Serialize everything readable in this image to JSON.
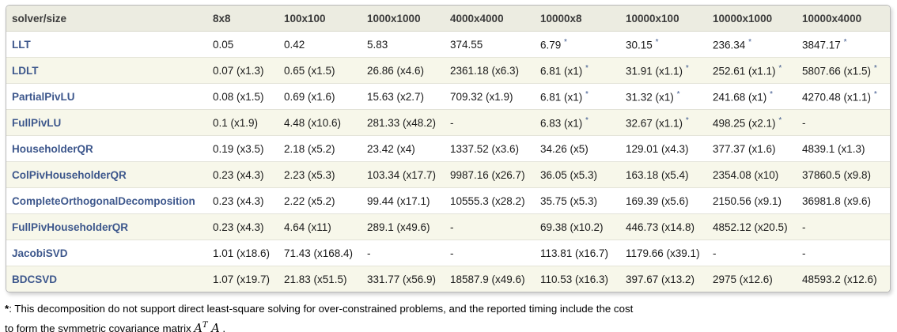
{
  "colors": {
    "header_bg": "#ECECE1",
    "row_bg": "#FFFFFF",
    "row_alt_bg": "#F7F7EA",
    "link": "#3D578C",
    "border": "#B8B8B8",
    "row_divider": "#E3E3D8",
    "header_text": "#3B3B3B",
    "cell_text": "#1A1A1A"
  },
  "table": {
    "star_marker": "*",
    "columns": [
      "solver/size",
      "8x8",
      "100x100",
      "1000x1000",
      "4000x4000",
      "10000x8",
      "10000x100",
      "10000x1000",
      "10000x4000"
    ],
    "rows": [
      {
        "solver": "LLT",
        "cells": [
          {
            "v": "0.05"
          },
          {
            "v": "0.42"
          },
          {
            "v": "5.83"
          },
          {
            "v": "374.55"
          },
          {
            "v": "6.79",
            "star": true
          },
          {
            "v": "30.15",
            "star": true
          },
          {
            "v": "236.34",
            "star": true
          },
          {
            "v": "3847.17",
            "star": true
          }
        ]
      },
      {
        "solver": "LDLT",
        "cells": [
          {
            "v": "0.07 (x1.3)"
          },
          {
            "v": "0.65 (x1.5)"
          },
          {
            "v": "26.86 (x4.6)"
          },
          {
            "v": "2361.18 (x6.3)"
          },
          {
            "v": "6.81 (x1)",
            "star": true
          },
          {
            "v": "31.91 (x1.1)",
            "star": true
          },
          {
            "v": "252.61 (x1.1)",
            "star": true
          },
          {
            "v": "5807.66 (x1.5)",
            "star": true
          }
        ]
      },
      {
        "solver": "PartialPivLU",
        "cells": [
          {
            "v": "0.08 (x1.5)"
          },
          {
            "v": "0.69 (x1.6)"
          },
          {
            "v": "15.63 (x2.7)"
          },
          {
            "v": "709.32 (x1.9)"
          },
          {
            "v": "6.81 (x1)",
            "star": true
          },
          {
            "v": "31.32 (x1)",
            "star": true
          },
          {
            "v": "241.68 (x1)",
            "star": true
          },
          {
            "v": "4270.48 (x1.1)",
            "star": true
          }
        ]
      },
      {
        "solver": "FullPivLU",
        "cells": [
          {
            "v": "0.1 (x1.9)"
          },
          {
            "v": "4.48 (x10.6)"
          },
          {
            "v": "281.33 (x48.2)"
          },
          {
            "v": "-"
          },
          {
            "v": "6.83 (x1)",
            "star": true
          },
          {
            "v": "32.67 (x1.1)",
            "star": true
          },
          {
            "v": "498.25 (x2.1)",
            "star": true
          },
          {
            "v": "-"
          }
        ]
      },
      {
        "solver": "HouseholderQR",
        "cells": [
          {
            "v": "0.19 (x3.5)"
          },
          {
            "v": "2.18 (x5.2)"
          },
          {
            "v": "23.42 (x4)"
          },
          {
            "v": "1337.52 (x3.6)"
          },
          {
            "v": "34.26 (x5)"
          },
          {
            "v": "129.01 (x4.3)"
          },
          {
            "v": "377.37 (x1.6)"
          },
          {
            "v": "4839.1 (x1.3)"
          }
        ]
      },
      {
        "solver": "ColPivHouseholderQR",
        "cells": [
          {
            "v": "0.23 (x4.3)"
          },
          {
            "v": "2.23 (x5.3)"
          },
          {
            "v": "103.34 (x17.7)"
          },
          {
            "v": "9987.16 (x26.7)"
          },
          {
            "v": "36.05 (x5.3)"
          },
          {
            "v": "163.18 (x5.4)"
          },
          {
            "v": "2354.08 (x10)"
          },
          {
            "v": "37860.5 (x9.8)"
          }
        ]
      },
      {
        "solver": "CompleteOrthogonalDecomposition",
        "cells": [
          {
            "v": "0.23 (x4.3)"
          },
          {
            "v": "2.22 (x5.2)"
          },
          {
            "v": "99.44 (x17.1)"
          },
          {
            "v": "10555.3 (x28.2)"
          },
          {
            "v": "35.75 (x5.3)"
          },
          {
            "v": "169.39 (x5.6)"
          },
          {
            "v": "2150.56 (x9.1)"
          },
          {
            "v": "36981.8 (x9.6)"
          }
        ]
      },
      {
        "solver": "FullPivHouseholderQR",
        "cells": [
          {
            "v": "0.23 (x4.3)"
          },
          {
            "v": "4.64 (x11)"
          },
          {
            "v": "289.1 (x49.6)"
          },
          {
            "v": "-"
          },
          {
            "v": "69.38 (x10.2)"
          },
          {
            "v": "446.73 (x14.8)"
          },
          {
            "v": "4852.12 (x20.5)"
          },
          {
            "v": "-"
          }
        ]
      },
      {
        "solver": "JacobiSVD",
        "cells": [
          {
            "v": "1.01 (x18.6)"
          },
          {
            "v": "71.43 (x168.4)"
          },
          {
            "v": "-"
          },
          {
            "v": "-"
          },
          {
            "v": "113.81 (x16.7)"
          },
          {
            "v": "1179.66 (x39.1)"
          },
          {
            "v": "-"
          },
          {
            "v": "-"
          }
        ]
      },
      {
        "solver": "BDCSVD",
        "cells": [
          {
            "v": "1.07 (x19.7)"
          },
          {
            "v": "21.83 (x51.5)"
          },
          {
            "v": "331.77 (x56.9)"
          },
          {
            "v": "18587.9 (x49.6)"
          },
          {
            "v": "110.53 (x16.3)"
          },
          {
            "v": "397.67 (x13.2)"
          },
          {
            "v": "2975 (x12.6)"
          },
          {
            "v": "48593.2 (x12.6)"
          }
        ]
      }
    ]
  },
  "footnote": {
    "marker": "*",
    "line1_rest": ": This decomposition do not support direct least-square solving for over-constrained problems, and the reported timing include the cost",
    "line2_prefix": "to form the symmetric covariance matrix",
    "formula_a1": "A",
    "formula_sup": "T",
    "formula_a2": "A",
    "line2_suffix": "."
  }
}
